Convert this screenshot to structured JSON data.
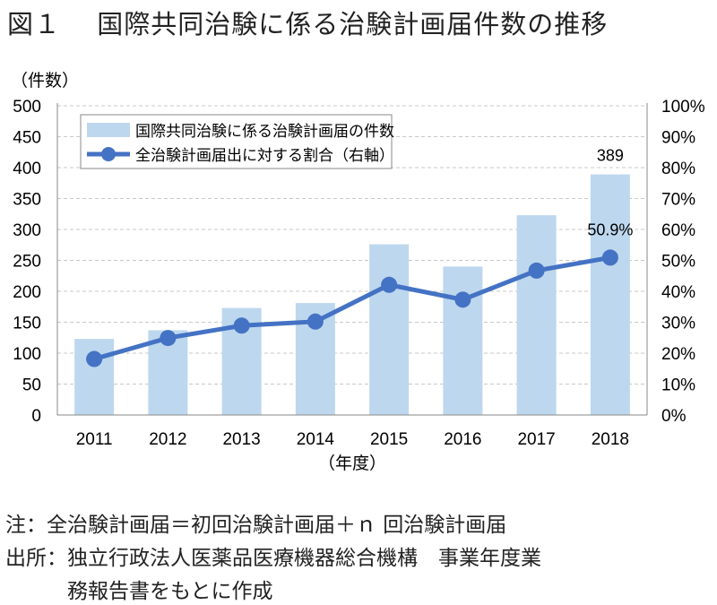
{
  "figure_title": "図１　 国際共同治験に係る治験計画届件数の推移",
  "chart_data": {
    "type": "bar+line",
    "categories": [
      "2011",
      "2012",
      "2013",
      "2014",
      "2015",
      "2016",
      "2017",
      "2018"
    ],
    "series": [
      {
        "name": "国際共同治験に係る治験計画届の件数",
        "type": "bar",
        "axis": "left",
        "color": "#bdd7ee",
        "values": [
          123,
          137,
          173,
          181,
          276,
          240,
          323,
          389
        ]
      },
      {
        "name": "全治験計画届出に対する割合（右軸）",
        "type": "line",
        "axis": "right",
        "color": "#4472c4",
        "values": [
          18.1,
          24.9,
          28.9,
          30.2,
          42.1,
          37.3,
          46.7,
          50.9
        ]
      }
    ],
    "data_labels": {
      "bar_2018": "389",
      "line_2018": "50.9%"
    },
    "ylabel": "（件数）",
    "xlabel": "（年度）",
    "ylim": [
      0,
      500
    ],
    "y_ticks": [
      "0",
      "50",
      "100",
      "150",
      "200",
      "250",
      "300",
      "350",
      "400",
      "450",
      "500"
    ],
    "y2lim": [
      0,
      100
    ],
    "y2_ticks": [
      "0%",
      "10%",
      "20%",
      "30%",
      "40%",
      "50%",
      "60%",
      "70%",
      "80%",
      "90%",
      "100%"
    ],
    "grid": true,
    "legend_position": "top-left"
  },
  "notes": [
    "注：全治験計画届＝初回治験計画届＋ｎ 回治験計画届",
    "出所：独立行政法人医薬品医療機器総合機構　事業年度業",
    "　　　務報告書をもとに作成"
  ]
}
